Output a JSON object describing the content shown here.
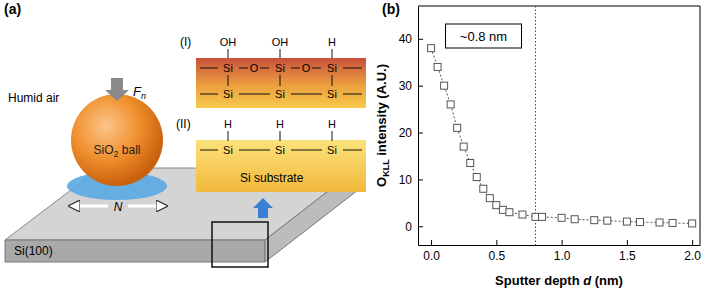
{
  "diagram": {
    "panel_label": "(a)",
    "ambient": "Humid air",
    "force_label": {
      "main": "F",
      "sub": "n"
    },
    "ball_label": {
      "main": "SiO",
      "sub": "2",
      "rest": " ball"
    },
    "motion_label": "N",
    "substrate_label": "Si(100)",
    "structure_I": {
      "label": "(I)",
      "top": [
        "OH",
        "OH",
        "H"
      ],
      "row1": [
        "Si",
        "O",
        "Si",
        "O",
        "Si"
      ],
      "row2": [
        "Si",
        "Si",
        "Si"
      ]
    },
    "structure_II": {
      "label": "(II)",
      "top": [
        "H",
        "H",
        "H"
      ],
      "row1": [
        "Si",
        "Si",
        "Si"
      ],
      "text": "Si substrate"
    }
  },
  "chart_data": {
    "type": "line",
    "panel_label": "(b)",
    "x": [
      0,
      0.05,
      0.1,
      0.15,
      0.2,
      0.25,
      0.3,
      0.35,
      0.4,
      0.45,
      0.5,
      0.55,
      0.6,
      0.7,
      0.8,
      0.85,
      1.0,
      1.1,
      1.25,
      1.35,
      1.5,
      1.6,
      1.75,
      1.85,
      2.0
    ],
    "values": [
      38,
      34,
      30,
      26,
      21,
      17,
      13.5,
      10.5,
      8,
      6,
      4.5,
      3.5,
      3,
      2.5,
      2,
      2,
      1.8,
      1.5,
      1.3,
      1.2,
      1,
      0.9,
      0.8,
      0.7,
      0.6
    ],
    "xlim": [
      -0.1,
      2.06
    ],
    "xticks": [
      {
        "value": 0,
        "label": "0.0"
      },
      {
        "value": 0.5,
        "label": "0.5"
      },
      {
        "value": 1,
        "label": "1.0"
      },
      {
        "value": 1.5,
        "label": "1.5"
      },
      {
        "value": 2,
        "label": "2.0"
      }
    ],
    "ylim": [
      -4,
      47
    ],
    "yticks": [
      0,
      10,
      20,
      30,
      40
    ],
    "xlabel": {
      "main": "Sputter depth ",
      "italic": "d",
      "rest": " (nm)"
    },
    "ylabel": {
      "main": "O",
      "sub": "KLL",
      "rest": " intensity (A.U.)"
    },
    "annotations": [
      {
        "text": "~0.8 nm",
        "x": 0.8
      }
    ],
    "marker": "square",
    "line_style": "dotted",
    "color": "#555555"
  }
}
